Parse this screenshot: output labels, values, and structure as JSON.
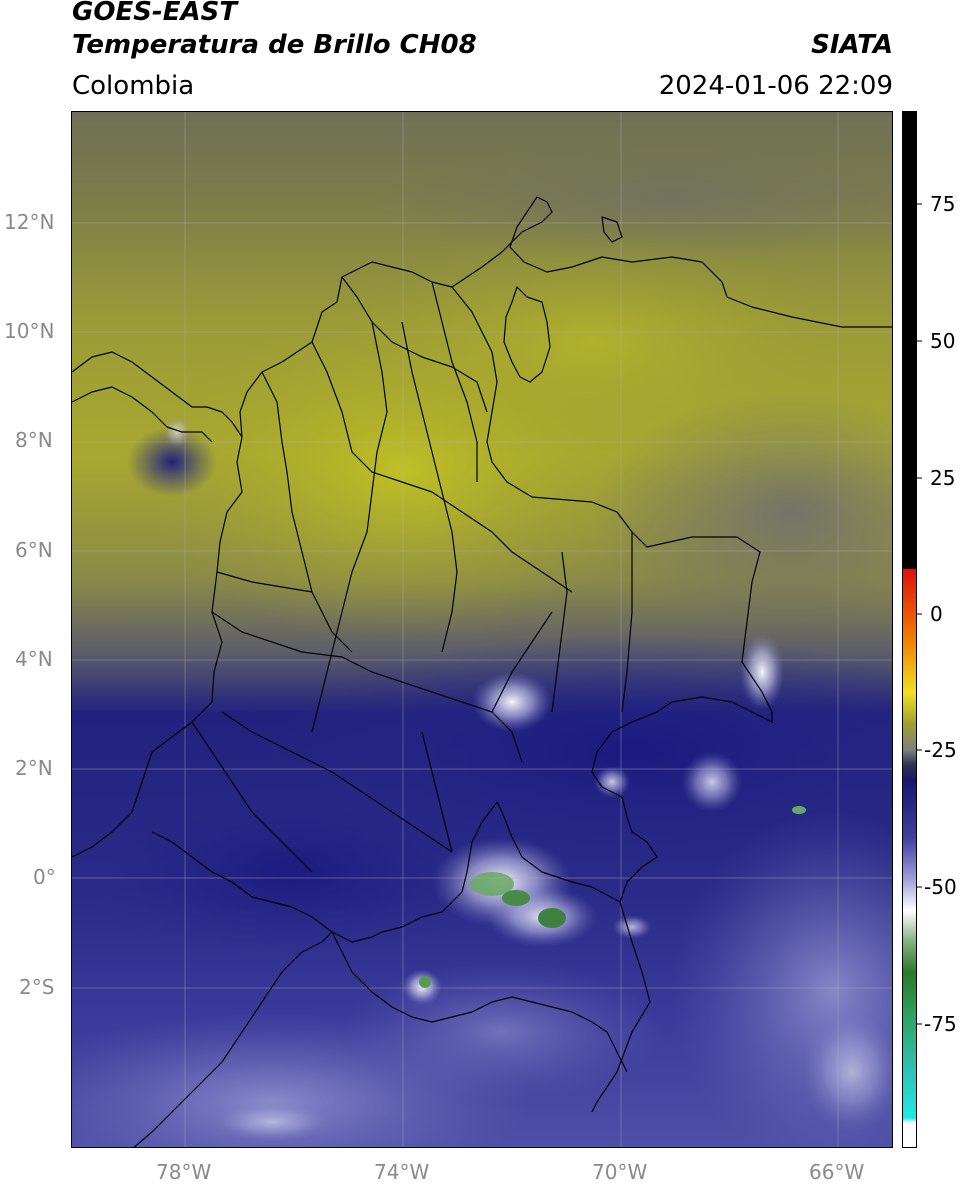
{
  "header": {
    "title_line1": "GOES-EAST",
    "title_line2": "Temperatura de Brillo CH08",
    "region": "Colombia",
    "agency": "SIATA",
    "timestamp": "2024-01-06 22:09"
  },
  "map": {
    "lat_ticks": [
      "12°N",
      "10°N",
      "8°N",
      "6°N",
      "4°N",
      "2°N",
      "0°",
      "2°S"
    ],
    "lon_ticks": [
      "78°W",
      "74°W",
      "70°W",
      "66°W"
    ],
    "gridlines": true,
    "palette": {
      "warm_olive": "#b5b52a",
      "mid_olive": "#8a8a4a",
      "grey": "#6e6e78",
      "navy": "#1c1c7c",
      "blue": "#3a3aa0",
      "lavender": "#8888c8",
      "white": "#f0f0f8",
      "green": "#5a9a50",
      "borders": "#000000"
    }
  },
  "colorbar": {
    "tick_labels": [
      "75",
      "50",
      "25",
      "0",
      "-25",
      "-50",
      "-75"
    ],
    "stops": [
      "#000000",
      "#e02010",
      "#f08000",
      "#f0e020",
      "#a0a020",
      "#505050",
      "#20208a",
      "#6060b0",
      "#ffffff",
      "#2a7a2a",
      "#30c0a0",
      "#20e0e0",
      "#ffffff"
    ]
  }
}
